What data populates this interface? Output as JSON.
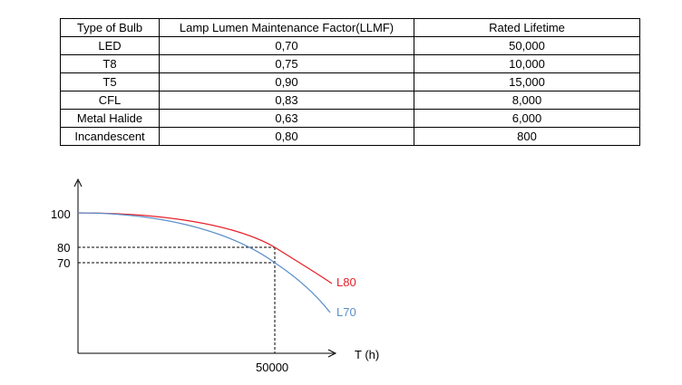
{
  "table": {
    "headers": [
      "Type of Bulb",
      "Lamp Lumen Maintenance Factor(LLMF)",
      "Rated Lifetime"
    ],
    "rows": [
      [
        "LED",
        "0,70",
        "50,000"
      ],
      [
        "T8",
        "0,75",
        "10,000"
      ],
      [
        "T5",
        "0,90",
        "15,000"
      ],
      [
        "CFL",
        "0,83",
        "8,000"
      ],
      [
        "Metal Halide",
        "0,63",
        "6,000"
      ],
      [
        "Incandescent",
        "0,80",
        "800"
      ]
    ]
  },
  "chart_data": {
    "type": "line",
    "xlabel": "T (h)",
    "ylabel": "",
    "y_ticks": [
      "100",
      "80",
      "70"
    ],
    "x_ticks": [
      "50000"
    ],
    "series": [
      {
        "name": "L80",
        "color": "#e8202a"
      },
      {
        "name": "L70",
        "color": "#5b8fc9"
      }
    ]
  }
}
